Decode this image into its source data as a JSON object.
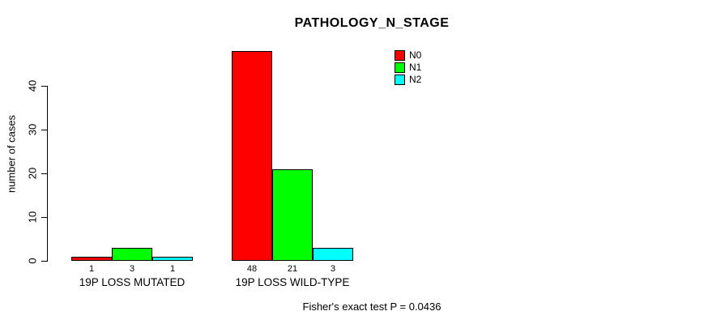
{
  "chart_data": {
    "type": "bar",
    "title": "PATHOLOGY_N_STAGE",
    "xlabel": "",
    "ylabel": "number of cases",
    "categories": [
      "19P LOSS MUTATED",
      "19P LOSS WILD-TYPE"
    ],
    "series": [
      {
        "name": "N0",
        "color": "#ff0000",
        "values": [
          1,
          48
        ]
      },
      {
        "name": "N1",
        "color": "#00ff00",
        "values": [
          3,
          21
        ]
      },
      {
        "name": "N2",
        "color": "#00ffff",
        "values": [
          1,
          3
        ]
      }
    ],
    "bar_value_labels": [
      [
        "1",
        "3",
        "1"
      ],
      [
        "48",
        "21",
        "3"
      ]
    ],
    "y_ticks": [
      0,
      10,
      20,
      30,
      40
    ],
    "ylim": [
      0,
      40
    ],
    "grid": false,
    "legend_position": "top-right"
  },
  "footnote": "Fisher's exact test P = 0.0436"
}
